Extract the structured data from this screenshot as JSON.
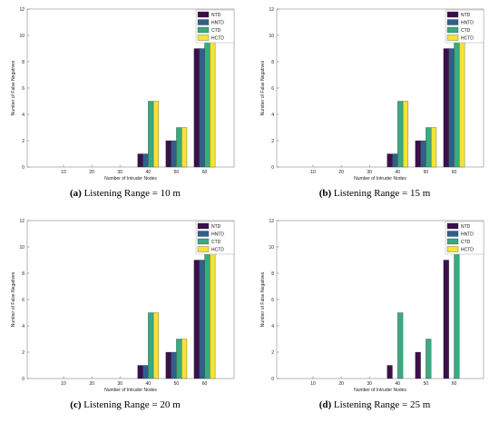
{
  "legend_series": [
    "NTD",
    "HNTD",
    "CTD",
    "HCTD"
  ],
  "series_colors": [
    "#3b0f4a",
    "#2f5f8a",
    "#3aaa80",
    "#f5e23a"
  ],
  "chart_data": [
    {
      "type": "bar",
      "caption_tag": "(a)",
      "caption_text": "Listening Range = 10 m",
      "xlabel": "Number of Intruder Nodes",
      "ylabel": "Number of False Negatives",
      "categories": [
        "10",
        "20",
        "30",
        "40",
        "50",
        "60"
      ],
      "ylim": [
        0,
        12
      ],
      "yticks": [
        0,
        2,
        4,
        6,
        8,
        10,
        12
      ],
      "grid": false,
      "legend_position": "top-right",
      "series": [
        {
          "name": "NTD",
          "values": [
            0,
            0,
            0,
            1,
            2,
            9
          ]
        },
        {
          "name": "HNTD",
          "values": [
            0,
            0,
            0,
            1,
            2,
            9
          ]
        },
        {
          "name": "CTD",
          "values": [
            0,
            0,
            0,
            5,
            3,
            10
          ]
        },
        {
          "name": "HCTD",
          "values": [
            0,
            0,
            0,
            5,
            3,
            10
          ]
        }
      ]
    },
    {
      "type": "bar",
      "caption_tag": "(b)",
      "caption_text": "Listening Range = 15 m",
      "xlabel": "Number of Intruder Nodes",
      "ylabel": "Number of False Negatives",
      "categories": [
        "10",
        "20",
        "30",
        "40",
        "50",
        "60"
      ],
      "ylim": [
        0,
        12
      ],
      "yticks": [
        0,
        2,
        4,
        6,
        8,
        10,
        12
      ],
      "grid": false,
      "legend_position": "top-right",
      "series": [
        {
          "name": "NTD",
          "values": [
            0,
            0,
            0,
            1,
            2,
            9
          ]
        },
        {
          "name": "HNTD",
          "values": [
            0,
            0,
            0,
            1,
            2,
            9
          ]
        },
        {
          "name": "CTD",
          "values": [
            0,
            0,
            0,
            5,
            3,
            10
          ]
        },
        {
          "name": "HCTD",
          "values": [
            0,
            0,
            0,
            5,
            3,
            10
          ]
        }
      ]
    },
    {
      "type": "bar",
      "caption_tag": "(c)",
      "caption_text": "Listening Range = 20 m",
      "xlabel": "Number of Intruder Nodes",
      "ylabel": "Number of False Negatives",
      "categories": [
        "10",
        "20",
        "30",
        "40",
        "50",
        "60"
      ],
      "ylim": [
        0,
        12
      ],
      "yticks": [
        0,
        2,
        4,
        6,
        8,
        10,
        12
      ],
      "grid": false,
      "legend_position": "top-right",
      "series": [
        {
          "name": "NTD",
          "values": [
            0,
            0,
            0,
            1,
            2,
            9
          ]
        },
        {
          "name": "HNTD",
          "values": [
            0,
            0,
            0,
            1,
            2,
            9
          ]
        },
        {
          "name": "CTD",
          "values": [
            0,
            0,
            0,
            5,
            3,
            10
          ]
        },
        {
          "name": "HCTD",
          "values": [
            0,
            0,
            0,
            5,
            3,
            10
          ]
        }
      ]
    },
    {
      "type": "bar",
      "caption_tag": "(d)",
      "caption_text": "Listening Range = 25 m",
      "xlabel": "Number of Intruder Nodes",
      "ylabel": "Number of False Negatives",
      "categories": [
        "10",
        "20",
        "30",
        "40",
        "50",
        "60"
      ],
      "ylim": [
        0,
        12
      ],
      "yticks": [
        0,
        2,
        4,
        6,
        8,
        10,
        12
      ],
      "grid": false,
      "legend_position": "top-right",
      "series": [
        {
          "name": "NTD",
          "values": [
            0,
            0,
            0,
            1,
            2,
            9
          ]
        },
        {
          "name": "HNTD",
          "values": [
            0,
            0,
            0,
            0,
            0,
            0
          ]
        },
        {
          "name": "CTD",
          "values": [
            0,
            0,
            0,
            5,
            3,
            10
          ]
        },
        {
          "name": "HCTD",
          "values": [
            0,
            0,
            0,
            0,
            0,
            0
          ]
        }
      ]
    }
  ]
}
